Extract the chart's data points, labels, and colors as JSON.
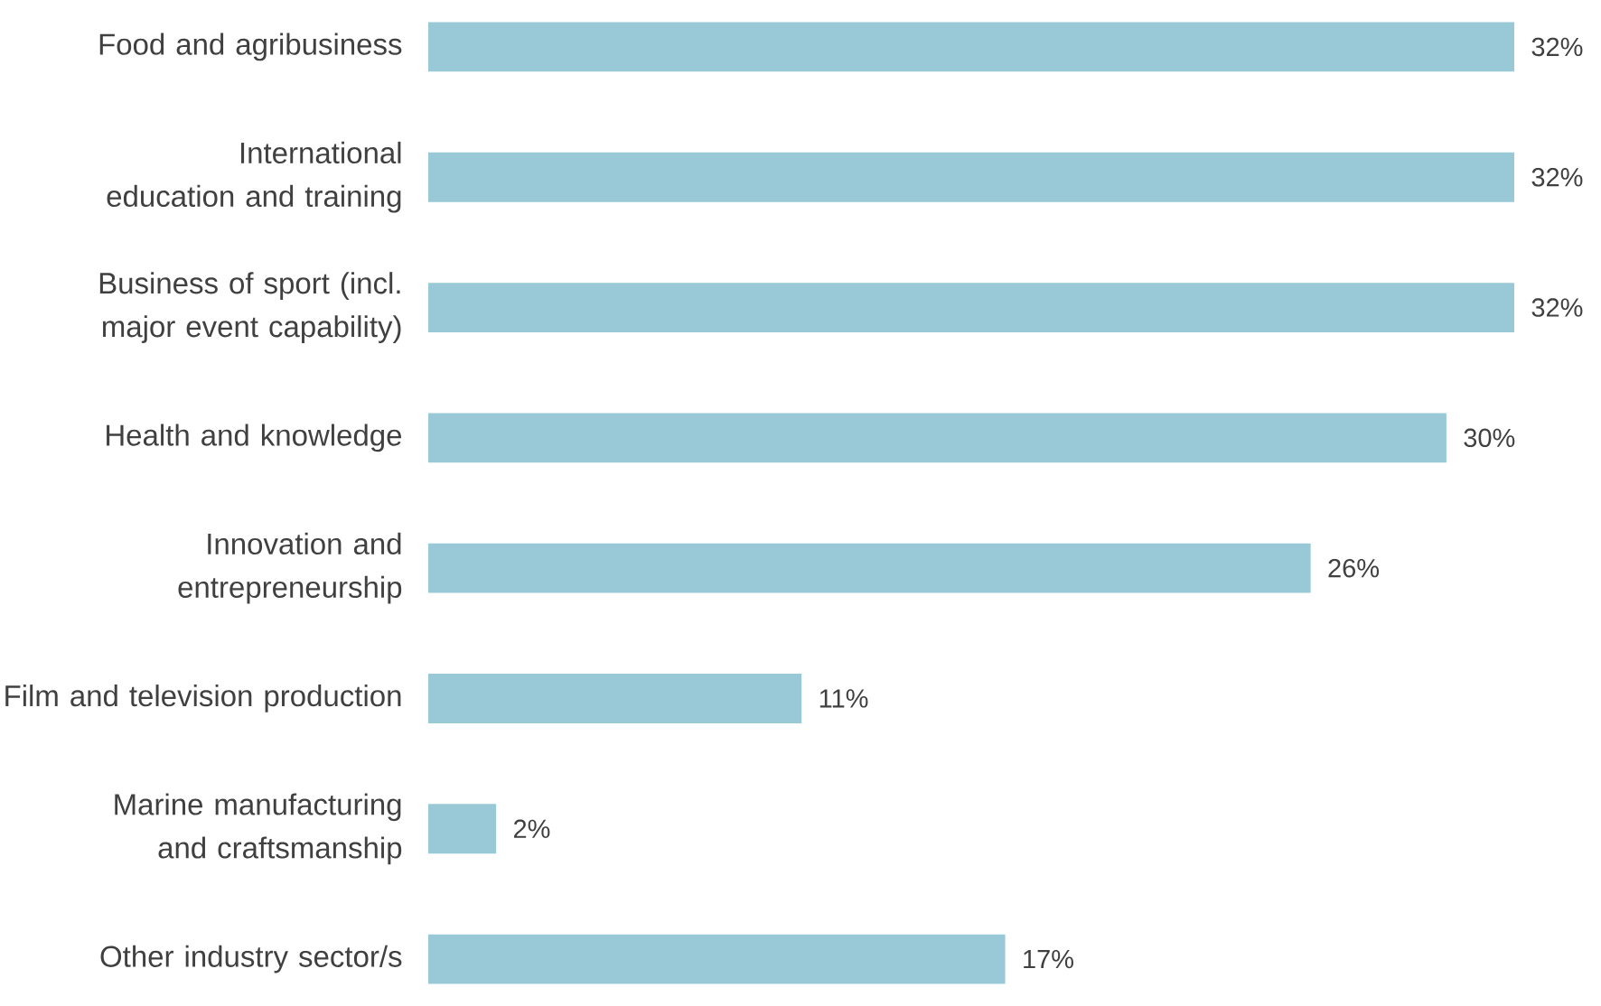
{
  "chart_data": {
    "type": "bar",
    "orientation": "horizontal",
    "color": "#99c9d6",
    "categories": [
      "Food and agribusiness",
      "International education and training",
      "Business of sport (incl. major event capability)",
      "Health and knowledge",
      "Innovation and entrepreneurship",
      "Film and television production",
      "Marine manufacturing and craftsmanship",
      "Other industry sector/s"
    ],
    "values": [
      32,
      32,
      32,
      30,
      26,
      11,
      2,
      17
    ],
    "value_labels": [
      "32%",
      "32%",
      "32%",
      "30%",
      "26%",
      "11%",
      "2%",
      "17%"
    ],
    "tick_labels": "y"
  }
}
